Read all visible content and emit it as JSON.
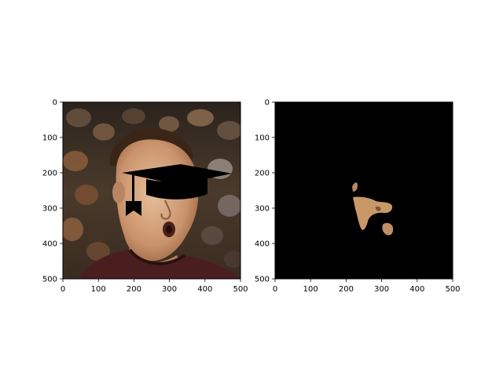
{
  "figure": {
    "background": "#ffffff"
  },
  "panels": [
    {
      "name": "left-panel",
      "content": "photo-with-graduation-cap-overlay",
      "xlim": [
        0,
        500
      ],
      "ylim": [
        500,
        0
      ],
      "xticks": [
        0,
        100,
        200,
        300,
        400,
        500
      ],
      "yticks": [
        0,
        100,
        200,
        300,
        400,
        500
      ]
    },
    {
      "name": "right-panel",
      "content": "segmentation-mask-skin",
      "xlim": [
        0,
        500
      ],
      "ylim": [
        500,
        0
      ],
      "xticks": [
        0,
        100,
        200,
        300,
        400,
        500
      ],
      "yticks": [
        0,
        100,
        200,
        300,
        400,
        500
      ]
    }
  ],
  "colors": {
    "mask_background": "#000000",
    "skin": "#c89868",
    "cap": "#000000"
  }
}
